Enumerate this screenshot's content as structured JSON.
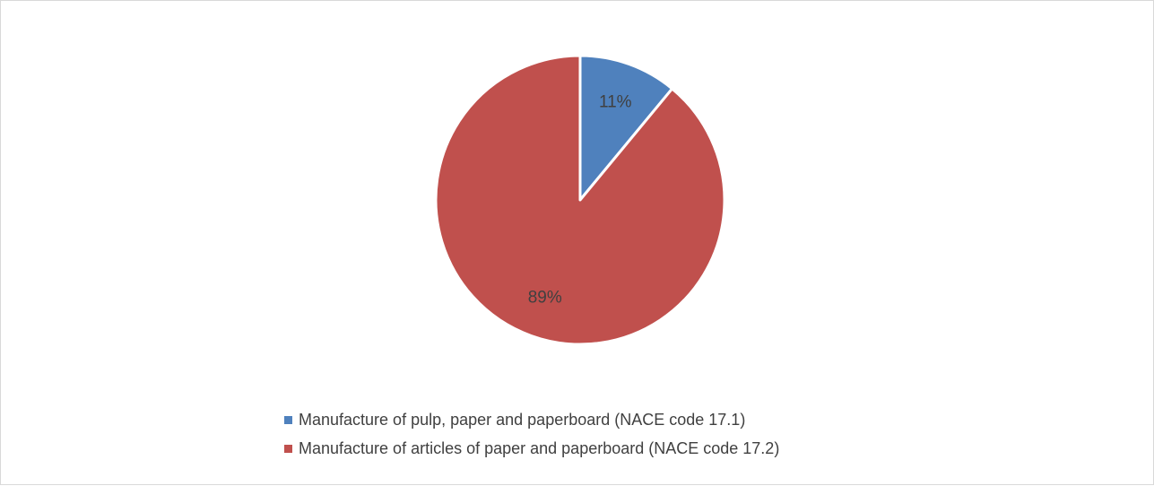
{
  "chart_data": {
    "type": "pie",
    "slices": [
      {
        "label": "Manufacture of pulp, paper and paperboard (NACE code 17.1)",
        "value": 11,
        "display": "11%",
        "color": "#4f81bd"
      },
      {
        "label": "Manufacture of articles of paper and paperboard (NACE code 17.2)",
        "value": 89,
        "display": "89%",
        "color": "#c0504d"
      }
    ],
    "start_angle": "12 o'clock",
    "direction": "clockwise",
    "slice_border_color": "#ffffff",
    "legend_position": "bottom"
  }
}
